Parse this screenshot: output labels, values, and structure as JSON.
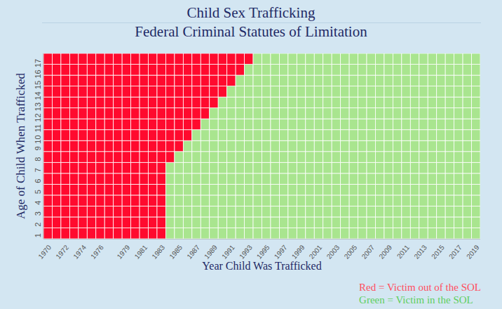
{
  "chart_data": {
    "type": "heatmap",
    "title": "Child Sex Trafficking",
    "subtitle": "Federal Criminal Statutes of Limitation",
    "x_label": "Year Child Was Trafficked",
    "y_label": "Age of Child When Trafficked",
    "categories": [
      "1970",
      null,
      "1972",
      null,
      "1974",
      null,
      "1976",
      null,
      null,
      "1979",
      null,
      "1981",
      null,
      "1983",
      null,
      "1985",
      null,
      "1987",
      null,
      "1989",
      null,
      "1991",
      null,
      "1993",
      null,
      "1995",
      null,
      "1997",
      null,
      "1999",
      null,
      "2001",
      null,
      "2003",
      null,
      "2005",
      null,
      "2007",
      null,
      "2009",
      null,
      "2011",
      null,
      "2013",
      null,
      "2015",
      null,
      "2017",
      null,
      "2019"
    ],
    "y": [
      1,
      2,
      3,
      4,
      5,
      6,
      7,
      8,
      9,
      10,
      11,
      12,
      13,
      14,
      15,
      16,
      17
    ],
    "series": [
      {
        "name": "Red = Victim out of the SOL",
        "color": "#ff0a2e"
      },
      {
        "name": "Green = Victim in the SOL",
        "color": "#a9e58f"
      }
    ],
    "legend": "lower right",
    "cells": [
      [
        0,
        0,
        0,
        0,
        0,
        0,
        0,
        0,
        0,
        0,
        0,
        0,
        0,
        0,
        1,
        1,
        1,
        1,
        1,
        1,
        1,
        1,
        1,
        1,
        1,
        1,
        1,
        1,
        1,
        1,
        1,
        1,
        1,
        1,
        1,
        1,
        1,
        1,
        1,
        1,
        1,
        1,
        1,
        1,
        1,
        1,
        1,
        1,
        1,
        1
      ],
      [
        0,
        0,
        0,
        0,
        0,
        0,
        0,
        0,
        0,
        0,
        0,
        0,
        0,
        0,
        1,
        1,
        1,
        1,
        1,
        1,
        1,
        1,
        1,
        1,
        1,
        1,
        1,
        1,
        1,
        1,
        1,
        1,
        1,
        1,
        1,
        1,
        1,
        1,
        1,
        1,
        1,
        1,
        1,
        1,
        1,
        1,
        1,
        1,
        1,
        1
      ],
      [
        0,
        0,
        0,
        0,
        0,
        0,
        0,
        0,
        0,
        0,
        0,
        0,
        0,
        0,
        1,
        1,
        1,
        1,
        1,
        1,
        1,
        1,
        1,
        1,
        1,
        1,
        1,
        1,
        1,
        1,
        1,
        1,
        1,
        1,
        1,
        1,
        1,
        1,
        1,
        1,
        1,
        1,
        1,
        1,
        1,
        1,
        1,
        1,
        1,
        1
      ],
      [
        0,
        0,
        0,
        0,
        0,
        0,
        0,
        0,
        0,
        0,
        0,
        0,
        0,
        0,
        1,
        1,
        1,
        1,
        1,
        1,
        1,
        1,
        1,
        1,
        1,
        1,
        1,
        1,
        1,
        1,
        1,
        1,
        1,
        1,
        1,
        1,
        1,
        1,
        1,
        1,
        1,
        1,
        1,
        1,
        1,
        1,
        1,
        1,
        1,
        1
      ],
      [
        0,
        0,
        0,
        0,
        0,
        0,
        0,
        0,
        0,
        0,
        0,
        0,
        0,
        0,
        1,
        1,
        1,
        1,
        1,
        1,
        1,
        1,
        1,
        1,
        1,
        1,
        1,
        1,
        1,
        1,
        1,
        1,
        1,
        1,
        1,
        1,
        1,
        1,
        1,
        1,
        1,
        1,
        1,
        1,
        1,
        1,
        1,
        1,
        1,
        1
      ],
      [
        0,
        0,
        0,
        0,
        0,
        0,
        0,
        0,
        0,
        0,
        0,
        0,
        0,
        0,
        1,
        1,
        1,
        1,
        1,
        1,
        1,
        1,
        1,
        1,
        1,
        1,
        1,
        1,
        1,
        1,
        1,
        1,
        1,
        1,
        1,
        1,
        1,
        1,
        1,
        1,
        1,
        1,
        1,
        1,
        1,
        1,
        1,
        1,
        1,
        1
      ],
      [
        0,
        0,
        0,
        0,
        0,
        0,
        0,
        0,
        0,
        0,
        0,
        0,
        0,
        0,
        1,
        1,
        1,
        1,
        1,
        1,
        1,
        1,
        1,
        1,
        1,
        1,
        1,
        1,
        1,
        1,
        1,
        1,
        1,
        1,
        1,
        1,
        1,
        1,
        1,
        1,
        1,
        1,
        1,
        1,
        1,
        1,
        1,
        1,
        1,
        1
      ],
      [
        0,
        0,
        0,
        0,
        0,
        0,
        0,
        0,
        0,
        0,
        0,
        0,
        0,
        0,
        0,
        1,
        1,
        1,
        1,
        1,
        1,
        1,
        1,
        1,
        1,
        1,
        1,
        1,
        1,
        1,
        1,
        1,
        1,
        1,
        1,
        1,
        1,
        1,
        1,
        1,
        1,
        1,
        1,
        1,
        1,
        1,
        1,
        1,
        1,
        1
      ],
      [
        0,
        0,
        0,
        0,
        0,
        0,
        0,
        0,
        0,
        0,
        0,
        0,
        0,
        0,
        0,
        0,
        1,
        1,
        1,
        1,
        1,
        1,
        1,
        1,
        1,
        1,
        1,
        1,
        1,
        1,
        1,
        1,
        1,
        1,
        1,
        1,
        1,
        1,
        1,
        1,
        1,
        1,
        1,
        1,
        1,
        1,
        1,
        1,
        1,
        1
      ],
      [
        0,
        0,
        0,
        0,
        0,
        0,
        0,
        0,
        0,
        0,
        0,
        0,
        0,
        0,
        0,
        0,
        0,
        1,
        1,
        1,
        1,
        1,
        1,
        1,
        1,
        1,
        1,
        1,
        1,
        1,
        1,
        1,
        1,
        1,
        1,
        1,
        1,
        1,
        1,
        1,
        1,
        1,
        1,
        1,
        1,
        1,
        1,
        1,
        1,
        1
      ],
      [
        0,
        0,
        0,
        0,
        0,
        0,
        0,
        0,
        0,
        0,
        0,
        0,
        0,
        0,
        0,
        0,
        0,
        0,
        1,
        1,
        1,
        1,
        1,
        1,
        1,
        1,
        1,
        1,
        1,
        1,
        1,
        1,
        1,
        1,
        1,
        1,
        1,
        1,
        1,
        1,
        1,
        1,
        1,
        1,
        1,
        1,
        1,
        1,
        1,
        1
      ],
      [
        0,
        0,
        0,
        0,
        0,
        0,
        0,
        0,
        0,
        0,
        0,
        0,
        0,
        0,
        0,
        0,
        0,
        0,
        0,
        1,
        1,
        1,
        1,
        1,
        1,
        1,
        1,
        1,
        1,
        1,
        1,
        1,
        1,
        1,
        1,
        1,
        1,
        1,
        1,
        1,
        1,
        1,
        1,
        1,
        1,
        1,
        1,
        1,
        1,
        1
      ],
      [
        0,
        0,
        0,
        0,
        0,
        0,
        0,
        0,
        0,
        0,
        0,
        0,
        0,
        0,
        0,
        0,
        0,
        0,
        0,
        0,
        1,
        1,
        1,
        1,
        1,
        1,
        1,
        1,
        1,
        1,
        1,
        1,
        1,
        1,
        1,
        1,
        1,
        1,
        1,
        1,
        1,
        1,
        1,
        1,
        1,
        1,
        1,
        1,
        1,
        1
      ],
      [
        0,
        0,
        0,
        0,
        0,
        0,
        0,
        0,
        0,
        0,
        0,
        0,
        0,
        0,
        0,
        0,
        0,
        0,
        0,
        0,
        0,
        1,
        1,
        1,
        1,
        1,
        1,
        1,
        1,
        1,
        1,
        1,
        1,
        1,
        1,
        1,
        1,
        1,
        1,
        1,
        1,
        1,
        1,
        1,
        1,
        1,
        1,
        1,
        1,
        1
      ],
      [
        0,
        0,
        0,
        0,
        0,
        0,
        0,
        0,
        0,
        0,
        0,
        0,
        0,
        0,
        0,
        0,
        0,
        0,
        0,
        0,
        0,
        0,
        1,
        1,
        1,
        1,
        1,
        1,
        1,
        1,
        1,
        1,
        1,
        1,
        1,
        1,
        1,
        1,
        1,
        1,
        1,
        1,
        1,
        1,
        1,
        1,
        1,
        1,
        1,
        1
      ],
      [
        0,
        0,
        0,
        0,
        0,
        0,
        0,
        0,
        0,
        0,
        0,
        0,
        0,
        0,
        0,
        0,
        0,
        0,
        0,
        0,
        0,
        0,
        0,
        1,
        1,
        1,
        1,
        1,
        1,
        1,
        1,
        1,
        1,
        1,
        1,
        1,
        1,
        1,
        1,
        1,
        1,
        1,
        1,
        1,
        1,
        1,
        1,
        1,
        1,
        1
      ],
      [
        0,
        0,
        0,
        0,
        0,
        0,
        0,
        0,
        0,
        0,
        0,
        0,
        0,
        0,
        0,
        0,
        0,
        0,
        0,
        0,
        0,
        0,
        0,
        0,
        1,
        1,
        1,
        1,
        1,
        1,
        1,
        1,
        1,
        1,
        1,
        1,
        1,
        1,
        1,
        1,
        1,
        1,
        1,
        1,
        1,
        1,
        1,
        1,
        1,
        1
      ]
    ]
  }
}
